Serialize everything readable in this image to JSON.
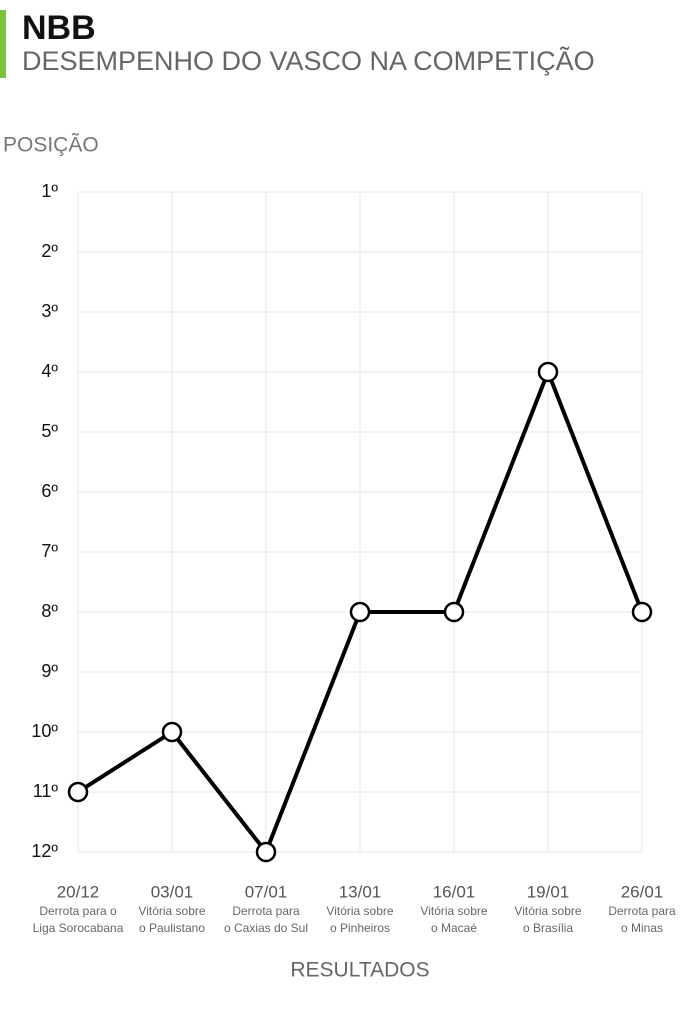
{
  "chart_data": {
    "type": "line",
    "title": "NBB",
    "subtitle": "DESEMPENHO DO VASCO NA COMPETIÇÃO",
    "y_label": "POSIÇÃO",
    "x_label": "RESULTADOS",
    "categories": [
      "20/12",
      "03/01",
      "07/01",
      "13/01",
      "16/01",
      "19/01",
      "26/01"
    ],
    "descriptions": [
      [
        "Derrota para o",
        "Liga Sorocabana"
      ],
      [
        "Vitória sobre",
        "o Paulistano"
      ],
      [
        "Derrota para",
        "o Caxias do Sul"
      ],
      [
        "Vitória sobre",
        "o Pinheiros"
      ],
      [
        "Vitória sobre",
        "o Macaé"
      ],
      [
        "Vitória sobre",
        "o Brasília"
      ],
      [
        "Derrota para",
        "o Minas"
      ]
    ],
    "values": [
      11,
      10,
      12,
      8,
      8,
      4,
      8
    ],
    "color": "#000000",
    "ylim": [
      12,
      1
    ],
    "yticks": [
      {
        "value": 1,
        "label": "1º"
      },
      {
        "value": 2,
        "label": "2º"
      },
      {
        "value": 3,
        "label": "3º"
      },
      {
        "value": 4,
        "label": "4º"
      },
      {
        "value": 5,
        "label": "5º"
      },
      {
        "value": 6,
        "label": "6º"
      },
      {
        "value": 7,
        "label": "7º"
      },
      {
        "value": 8,
        "label": "8º"
      },
      {
        "value": 9,
        "label": "9º"
      },
      {
        "value": 10,
        "label": "10º"
      },
      {
        "value": 11,
        "label": "11º"
      },
      {
        "value": 12,
        "label": "12º"
      }
    ],
    "grid": true
  }
}
